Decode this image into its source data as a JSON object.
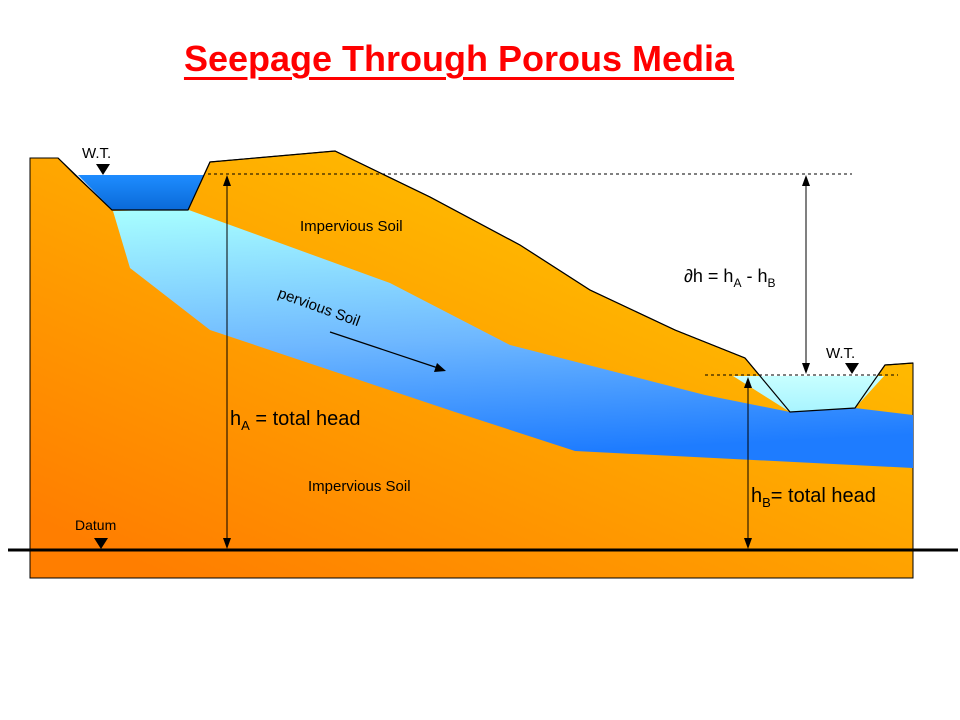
{
  "title": "Seepage Through Porous Media",
  "labels": {
    "wt_left": "W.T.",
    "wt_right": "W.T.",
    "impervious_top": "Impervious Soil",
    "impervious_bottom": "Impervious Soil",
    "pervious": "pervious Soil",
    "delta_h_symbol": "∂",
    "delta_h_h": "h = h",
    "delta_h_sub_a": "A",
    "delta_h_minus": " - h",
    "delta_h_sub_b": "B",
    "ha_h": "h",
    "ha_sub": "A",
    "ha_text": " = total head",
    "hb_h": "h",
    "hb_sub": "B",
    "hb_text": "= total head",
    "datum": "Datum"
  },
  "colors": {
    "title": "#ff0000",
    "soil_top": "#ffc600",
    "soil_bottom": "#ff7e00",
    "pervious_top": "#a8ffff",
    "pervious_bottom": "#1e7cff",
    "water": "#1e8cff",
    "line": "#000000"
  }
}
